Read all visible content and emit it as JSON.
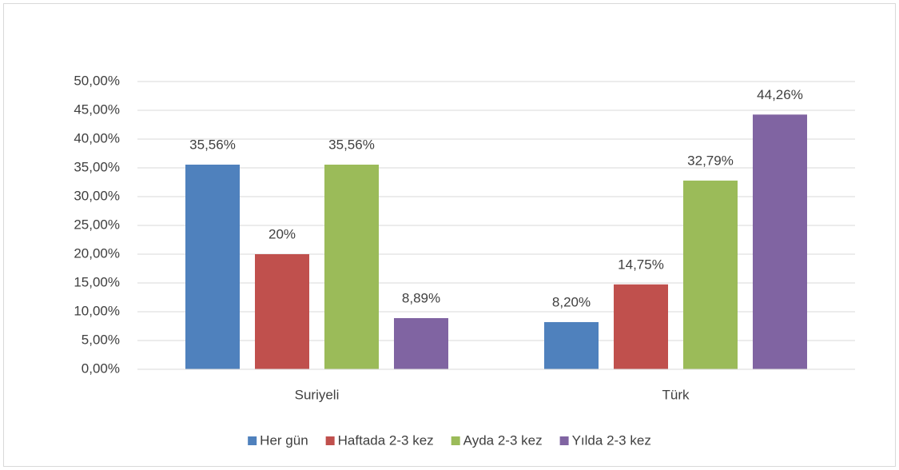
{
  "chart_data": {
    "type": "bar",
    "categories": [
      "Suriyeli",
      "Türk"
    ],
    "series": [
      {
        "name": "Her gün",
        "color": "#4f81bd",
        "values": [
          35.56,
          8.2
        ],
        "value_labels": [
          "35,56%",
          "8,20%"
        ]
      },
      {
        "name": "Haftada 2-3 kez",
        "color": "#c0504d",
        "values": [
          20,
          14.75
        ],
        "value_labels": [
          "20%",
          "14,75%"
        ]
      },
      {
        "name": "Ayda 2-3 kez",
        "color": "#9bbb59",
        "values": [
          35.56,
          32.79
        ],
        "value_labels": [
          "35,56%",
          "32,79%"
        ]
      },
      {
        "name": "Yılda 2-3 kez",
        "color": "#8064a2",
        "values": [
          8.89,
          44.26
        ],
        "value_labels": [
          "8,89%",
          "44,26%"
        ]
      }
    ],
    "ylim": [
      0,
      50
    ],
    "yticks": [
      {
        "value": 0,
        "label": "0,00%"
      },
      {
        "value": 5,
        "label": "5,00%"
      },
      {
        "value": 10,
        "label": "10,00%"
      },
      {
        "value": 15,
        "label": "15,00%"
      },
      {
        "value": 20,
        "label": "20,00%"
      },
      {
        "value": 25,
        "label": "25,00%"
      },
      {
        "value": 30,
        "label": "30,00%"
      },
      {
        "value": 35,
        "label": "35,00%"
      },
      {
        "value": 40,
        "label": "40,00%"
      },
      {
        "value": 45,
        "label": "45,00%"
      },
      {
        "value": 50,
        "label": "50,00%"
      }
    ],
    "grid": true,
    "legend": "bottom"
  }
}
